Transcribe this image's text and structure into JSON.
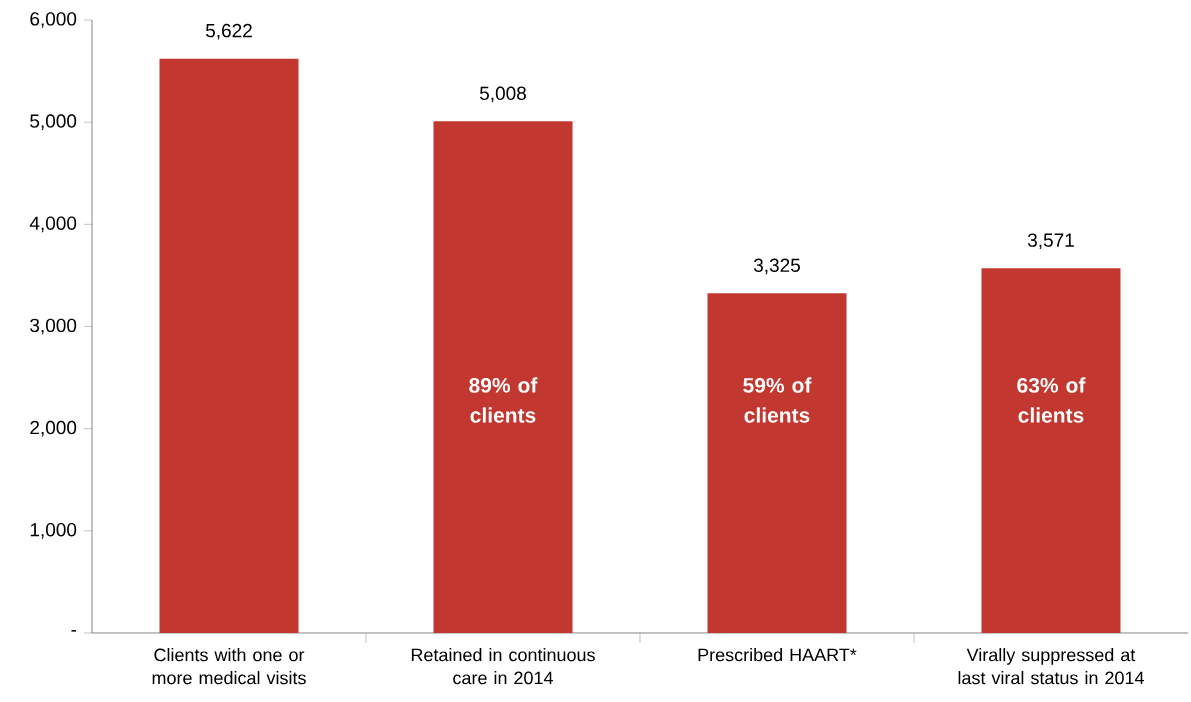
{
  "chart_data": {
    "type": "bar",
    "categories": [
      "Clients with one or more medical visits",
      "Retained in continuous care in 2014",
      "Prescribed HAART*",
      "Virally suppressed at last viral status in 2014"
    ],
    "values": [
      5622,
      5008,
      3325,
      3571
    ],
    "value_labels": [
      "5,622",
      "5,008",
      "3,325",
      "3,571"
    ],
    "color": "#c2372f",
    "ylim": [
      0,
      6000
    ],
    "yticks": [
      {
        "value": 0,
        "label": "-"
      },
      {
        "value": 1000,
        "label": "1,000"
      },
      {
        "value": 2000,
        "label": "2,000"
      },
      {
        "value": 3000,
        "label": "3,000"
      },
      {
        "value": 4000,
        "label": "4,000"
      },
      {
        "value": 5000,
        "label": "5,000"
      },
      {
        "value": 6000,
        "label": "6,000"
      }
    ],
    "grid": false,
    "annotations": [
      "89% of clients",
      "59% of clients",
      "63% of clients"
    ]
  }
}
